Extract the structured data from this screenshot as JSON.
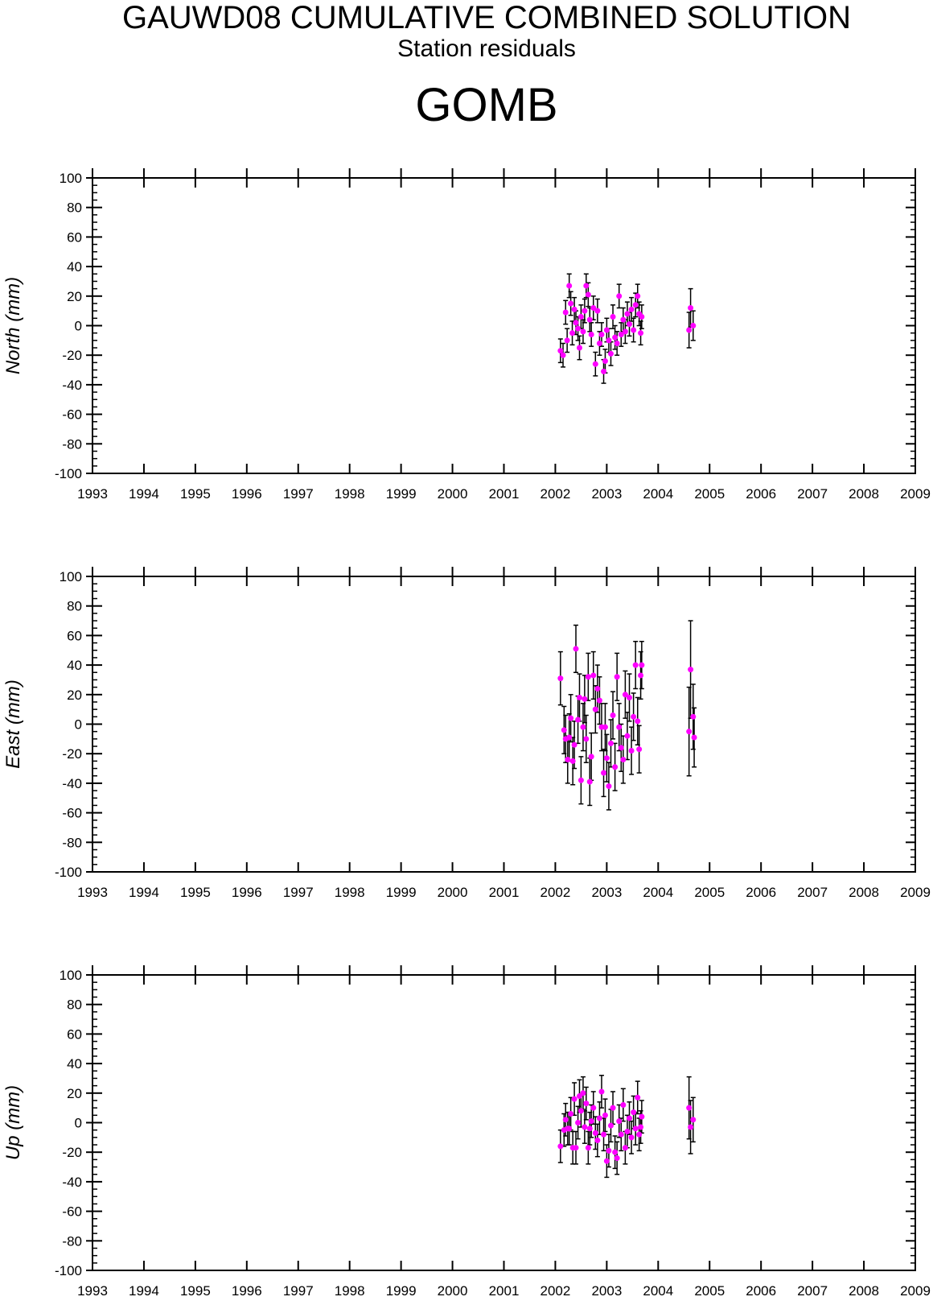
{
  "header": {
    "title": "GAUWD08 CUMULATIVE COMBINED SOLUTION",
    "subtitle": "Station residuals",
    "station": "GOMB"
  },
  "colors": {
    "point": "#ff00ff",
    "errorbar": "#000000",
    "axis": "#000000"
  },
  "chart_data": [
    {
      "type": "scatter",
      "name": "north",
      "ylabel": "North (mm)",
      "xlabel": "",
      "xlim": [
        1993,
        2009
      ],
      "ylim": [
        -100,
        100
      ],
      "xticks": [
        "1993",
        "1994",
        "1995",
        "1996",
        "1997",
        "1998",
        "1999",
        "2000",
        "2001",
        "2002",
        "2003",
        "2004",
        "2005",
        "2006",
        "2007",
        "2008",
        "2009"
      ],
      "yticks": [
        "100",
        "80",
        "60",
        "40",
        "20",
        "0",
        "-20",
        "-40",
        "-60",
        "-80",
        "-100"
      ],
      "error_bars": true,
      "points": [
        {
          "x": 2002.1,
          "y": -17,
          "err": 8
        },
        {
          "x": 2002.15,
          "y": -20,
          "err": 8
        },
        {
          "x": 2002.2,
          "y": 9,
          "err": 8
        },
        {
          "x": 2002.23,
          "y": -10,
          "err": 8
        },
        {
          "x": 2002.27,
          "y": 27,
          "err": 8
        },
        {
          "x": 2002.3,
          "y": 15,
          "err": 8
        },
        {
          "x": 2002.33,
          "y": -5,
          "err": 8
        },
        {
          "x": 2002.37,
          "y": 11,
          "err": 8
        },
        {
          "x": 2002.4,
          "y": 2,
          "err": 8
        },
        {
          "x": 2002.44,
          "y": -2,
          "err": 8
        },
        {
          "x": 2002.47,
          "y": -15,
          "err": 8
        },
        {
          "x": 2002.5,
          "y": 6,
          "err": 8
        },
        {
          "x": 2002.54,
          "y": -4,
          "err": 8
        },
        {
          "x": 2002.57,
          "y": 10,
          "err": 8
        },
        {
          "x": 2002.6,
          "y": 27,
          "err": 8
        },
        {
          "x": 2002.64,
          "y": 21,
          "err": 8
        },
        {
          "x": 2002.67,
          "y": 4,
          "err": 8
        },
        {
          "x": 2002.7,
          "y": -6,
          "err": 8
        },
        {
          "x": 2002.74,
          "y": 12,
          "err": 8
        },
        {
          "x": 2002.78,
          "y": -26,
          "err": 8
        },
        {
          "x": 2002.82,
          "y": 10,
          "err": 8
        },
        {
          "x": 2002.86,
          "y": -12,
          "err": 8
        },
        {
          "x": 2002.9,
          "y": -6,
          "err": 8
        },
        {
          "x": 2002.94,
          "y": -31,
          "err": 8
        },
        {
          "x": 2002.97,
          "y": -24,
          "err": 8
        },
        {
          "x": 2003.0,
          "y": -3,
          "err": 8
        },
        {
          "x": 2003.04,
          "y": -10,
          "err": 8
        },
        {
          "x": 2003.08,
          "y": -19,
          "err": 8
        },
        {
          "x": 2003.12,
          "y": 6,
          "err": 8
        },
        {
          "x": 2003.16,
          "y": -8,
          "err": 8
        },
        {
          "x": 2003.2,
          "y": -12,
          "err": 8
        },
        {
          "x": 2003.24,
          "y": 20,
          "err": 8
        },
        {
          "x": 2003.28,
          "y": -6,
          "err": 8
        },
        {
          "x": 2003.32,
          "y": 4,
          "err": 8
        },
        {
          "x": 2003.36,
          "y": -4,
          "err": 8
        },
        {
          "x": 2003.4,
          "y": 8,
          "err": 8
        },
        {
          "x": 2003.44,
          "y": 1,
          "err": 8
        },
        {
          "x": 2003.48,
          "y": 11,
          "err": 8
        },
        {
          "x": 2003.52,
          "y": -3,
          "err": 8
        },
        {
          "x": 2003.56,
          "y": 14,
          "err": 8
        },
        {
          "x": 2003.6,
          "y": 20,
          "err": 8
        },
        {
          "x": 2003.63,
          "y": 8,
          "err": 8
        },
        {
          "x": 2003.66,
          "y": -5,
          "err": 8
        },
        {
          "x": 2003.68,
          "y": 6,
          "err": 8
        },
        {
          "x": 2004.6,
          "y": -3,
          "err": 12
        },
        {
          "x": 2004.63,
          "y": 12,
          "err": 13
        },
        {
          "x": 2004.68,
          "y": 0,
          "err": 10
        }
      ]
    },
    {
      "type": "scatter",
      "name": "east",
      "ylabel": "East (mm)",
      "xlabel": "",
      "xlim": [
        1993,
        2009
      ],
      "ylim": [
        -100,
        100
      ],
      "xticks": [
        "1993",
        "1994",
        "1995",
        "1996",
        "1997",
        "1998",
        "1999",
        "2000",
        "2001",
        "2002",
        "2003",
        "2004",
        "2005",
        "2006",
        "2007",
        "2008",
        "2009"
      ],
      "yticks": [
        "100",
        "80",
        "60",
        "40",
        "20",
        "0",
        "-20",
        "-40",
        "-60",
        "-80",
        "-100"
      ],
      "error_bars": true,
      "points": [
        {
          "x": 2002.1,
          "y": 31,
          "err": 18
        },
        {
          "x": 2002.17,
          "y": -4,
          "err": 16
        },
        {
          "x": 2002.2,
          "y": -10,
          "err": 16
        },
        {
          "x": 2002.24,
          "y": -24,
          "err": 16
        },
        {
          "x": 2002.27,
          "y": -9,
          "err": 16
        },
        {
          "x": 2002.3,
          "y": 4,
          "err": 16
        },
        {
          "x": 2002.34,
          "y": -25,
          "err": 16
        },
        {
          "x": 2002.37,
          "y": -14,
          "err": 16
        },
        {
          "x": 2002.4,
          "y": 51,
          "err": 16
        },
        {
          "x": 2002.44,
          "y": 3,
          "err": 16
        },
        {
          "x": 2002.47,
          "y": 18,
          "err": 16
        },
        {
          "x": 2002.5,
          "y": -38,
          "err": 16
        },
        {
          "x": 2002.54,
          "y": -2,
          "err": 16
        },
        {
          "x": 2002.57,
          "y": 17,
          "err": 16
        },
        {
          "x": 2002.6,
          "y": -10,
          "err": 16
        },
        {
          "x": 2002.64,
          "y": 32,
          "err": 16
        },
        {
          "x": 2002.67,
          "y": -39,
          "err": 16
        },
        {
          "x": 2002.7,
          "y": -22,
          "err": 16
        },
        {
          "x": 2002.74,
          "y": 33,
          "err": 16
        },
        {
          "x": 2002.78,
          "y": 10,
          "err": 16
        },
        {
          "x": 2002.82,
          "y": 24,
          "err": 16
        },
        {
          "x": 2002.86,
          "y": 16,
          "err": 16
        },
        {
          "x": 2002.9,
          "y": -2,
          "err": 16
        },
        {
          "x": 2002.94,
          "y": -33,
          "err": 16
        },
        {
          "x": 2002.97,
          "y": -2,
          "err": 16
        },
        {
          "x": 2003.0,
          "y": -23,
          "err": 16
        },
        {
          "x": 2003.04,
          "y": -42,
          "err": 16
        },
        {
          "x": 2003.08,
          "y": -13,
          "err": 16
        },
        {
          "x": 2003.12,
          "y": 6,
          "err": 16
        },
        {
          "x": 2003.16,
          "y": -29,
          "err": 16
        },
        {
          "x": 2003.2,
          "y": 32,
          "err": 16
        },
        {
          "x": 2003.24,
          "y": -2,
          "err": 16
        },
        {
          "x": 2003.28,
          "y": -16,
          "err": 16
        },
        {
          "x": 2003.32,
          "y": -24,
          "err": 16
        },
        {
          "x": 2003.36,
          "y": 20,
          "err": 16
        },
        {
          "x": 2003.4,
          "y": -8,
          "err": 16
        },
        {
          "x": 2003.44,
          "y": 18,
          "err": 16
        },
        {
          "x": 2003.48,
          "y": -18,
          "err": 16
        },
        {
          "x": 2003.52,
          "y": 5,
          "err": 16
        },
        {
          "x": 2003.56,
          "y": 40,
          "err": 16
        },
        {
          "x": 2003.6,
          "y": 2,
          "err": 16
        },
        {
          "x": 2003.63,
          "y": -17,
          "err": 16
        },
        {
          "x": 2003.66,
          "y": 33,
          "err": 16
        },
        {
          "x": 2003.68,
          "y": 40,
          "err": 16
        },
        {
          "x": 2004.6,
          "y": -5,
          "err": 30
        },
        {
          "x": 2004.63,
          "y": 37,
          "err": 33
        },
        {
          "x": 2004.68,
          "y": 5,
          "err": 22
        },
        {
          "x": 2004.7,
          "y": -9,
          "err": 20
        }
      ]
    },
    {
      "type": "scatter",
      "name": "up",
      "ylabel": "Up (mm)",
      "xlabel": "",
      "xlim": [
        1993,
        2009
      ],
      "ylim": [
        -100,
        100
      ],
      "xticks": [
        "1993",
        "1994",
        "1995",
        "1996",
        "1997",
        "1998",
        "1999",
        "2000",
        "2001",
        "2002",
        "2003",
        "2004",
        "2005",
        "2006",
        "2007",
        "2008",
        "2009"
      ],
      "yticks": [
        "100",
        "80",
        "60",
        "40",
        "20",
        "0",
        "-20",
        "-40",
        "-60",
        "-80",
        "-100"
      ],
      "error_bars": true,
      "points": [
        {
          "x": 2002.1,
          "y": -16,
          "err": 11
        },
        {
          "x": 2002.17,
          "y": -5,
          "err": 11
        },
        {
          "x": 2002.2,
          "y": 2,
          "err": 11
        },
        {
          "x": 2002.24,
          "y": -4,
          "err": 11
        },
        {
          "x": 2002.27,
          "y": -4,
          "err": 11
        },
        {
          "x": 2002.3,
          "y": 6,
          "err": 11
        },
        {
          "x": 2002.34,
          "y": -17,
          "err": 11
        },
        {
          "x": 2002.37,
          "y": 16,
          "err": 11
        },
        {
          "x": 2002.4,
          "y": -17,
          "err": 11
        },
        {
          "x": 2002.44,
          "y": 0,
          "err": 11
        },
        {
          "x": 2002.47,
          "y": 18,
          "err": 11
        },
        {
          "x": 2002.5,
          "y": 8,
          "err": 11
        },
        {
          "x": 2002.54,
          "y": 20,
          "err": 11
        },
        {
          "x": 2002.57,
          "y": -3,
          "err": 11
        },
        {
          "x": 2002.6,
          "y": 13,
          "err": 11
        },
        {
          "x": 2002.64,
          "y": -17,
          "err": 11
        },
        {
          "x": 2002.67,
          "y": -4,
          "err": 11
        },
        {
          "x": 2002.7,
          "y": 1,
          "err": 11
        },
        {
          "x": 2002.74,
          "y": 10,
          "err": 11
        },
        {
          "x": 2002.78,
          "y": -7,
          "err": 11
        },
        {
          "x": 2002.82,
          "y": -12,
          "err": 11
        },
        {
          "x": 2002.86,
          "y": 3,
          "err": 11
        },
        {
          "x": 2002.9,
          "y": 21,
          "err": 11
        },
        {
          "x": 2002.94,
          "y": -8,
          "err": 11
        },
        {
          "x": 2002.97,
          "y": 5,
          "err": 11
        },
        {
          "x": 2003.0,
          "y": -26,
          "err": 11
        },
        {
          "x": 2003.04,
          "y": -19,
          "err": 11
        },
        {
          "x": 2003.08,
          "y": -2,
          "err": 11
        },
        {
          "x": 2003.12,
          "y": 10,
          "err": 11
        },
        {
          "x": 2003.16,
          "y": -20,
          "err": 11
        },
        {
          "x": 2003.2,
          "y": -24,
          "err": 11
        },
        {
          "x": 2003.24,
          "y": 1,
          "err": 11
        },
        {
          "x": 2003.28,
          "y": -8,
          "err": 11
        },
        {
          "x": 2003.32,
          "y": 12,
          "err": 11
        },
        {
          "x": 2003.36,
          "y": -17,
          "err": 11
        },
        {
          "x": 2003.4,
          "y": -6,
          "err": 11
        },
        {
          "x": 2003.44,
          "y": 3,
          "err": 11
        },
        {
          "x": 2003.48,
          "y": -10,
          "err": 11
        },
        {
          "x": 2003.52,
          "y": 7,
          "err": 11
        },
        {
          "x": 2003.56,
          "y": -4,
          "err": 11
        },
        {
          "x": 2003.6,
          "y": 17,
          "err": 11
        },
        {
          "x": 2003.63,
          "y": -8,
          "err": 11
        },
        {
          "x": 2003.66,
          "y": -3,
          "err": 11
        },
        {
          "x": 2003.68,
          "y": 4,
          "err": 11
        },
        {
          "x": 2004.6,
          "y": 10,
          "err": 21
        },
        {
          "x": 2004.63,
          "y": -3,
          "err": 18
        },
        {
          "x": 2004.68,
          "y": 2,
          "err": 15
        }
      ]
    }
  ]
}
